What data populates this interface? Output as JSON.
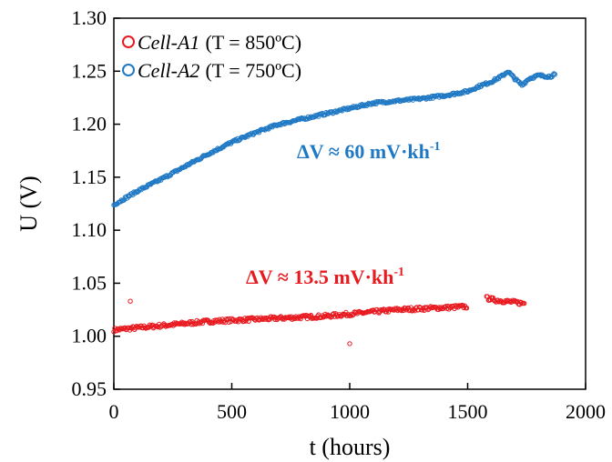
{
  "chart_data": {
    "type": "scatter",
    "xlabel": "t (hours)",
    "ylabel": "U (V)",
    "xlim": [
      0,
      2000
    ],
    "ylim": [
      0.95,
      1.3
    ],
    "xticks": [
      "0",
      "500",
      "1000",
      "1500",
      "2000"
    ],
    "yticks": [
      "0.95",
      "1.00",
      "1.05",
      "1.10",
      "1.15",
      "1.20",
      "1.25",
      "1.30"
    ],
    "grid": false,
    "legend_position": "top-left",
    "series": [
      {
        "name": "Cell-A1",
        "condition": "(T = 850ºC)",
        "color": "#e8191f",
        "marker": "open-circle",
        "x": [
          0,
          100,
          200,
          300,
          400,
          500,
          600,
          700,
          800,
          900,
          1000,
          1100,
          1200,
          1300,
          1400,
          1500,
          1580,
          1620,
          1700,
          1740
        ],
        "y": [
          1.006,
          1.008,
          1.01,
          1.012,
          1.014,
          1.015,
          1.016,
          1.017,
          1.018,
          1.019,
          1.021,
          1.023,
          1.025,
          1.026,
          1.027,
          1.028,
          1.036,
          1.034,
          1.032,
          1.031
        ],
        "outliers": [
          [
            70,
            1.033
          ],
          [
            1000,
            0.993
          ]
        ]
      },
      {
        "name": "Cell-A2",
        "condition": "(T = 750ºC)",
        "color": "#1f78c4",
        "marker": "open-circle",
        "x": [
          0,
          100,
          200,
          300,
          400,
          500,
          600,
          700,
          800,
          900,
          1000,
          1100,
          1200,
          1300,
          1400,
          1500,
          1550,
          1600,
          1650,
          1670,
          1700,
          1730,
          1760,
          1800,
          1850,
          1870
        ],
        "y": [
          1.124,
          1.137,
          1.148,
          1.16,
          1.172,
          1.183,
          1.192,
          1.2,
          1.205,
          1.21,
          1.215,
          1.22,
          1.222,
          1.224,
          1.227,
          1.231,
          1.236,
          1.24,
          1.246,
          1.25,
          1.243,
          1.237,
          1.243,
          1.246,
          1.245,
          1.247
        ]
      }
    ],
    "annotations": [
      {
        "text_main": "ΔV ≈ 60 mV·kh",
        "text_sup": "-1",
        "color": "#1f78c4",
        "series": "Cell-A2"
      },
      {
        "text_main": "ΔV ≈ 13.5 mV·kh",
        "text_sup": "-1",
        "color": "#e8191f",
        "series": "Cell-A1"
      }
    ]
  }
}
